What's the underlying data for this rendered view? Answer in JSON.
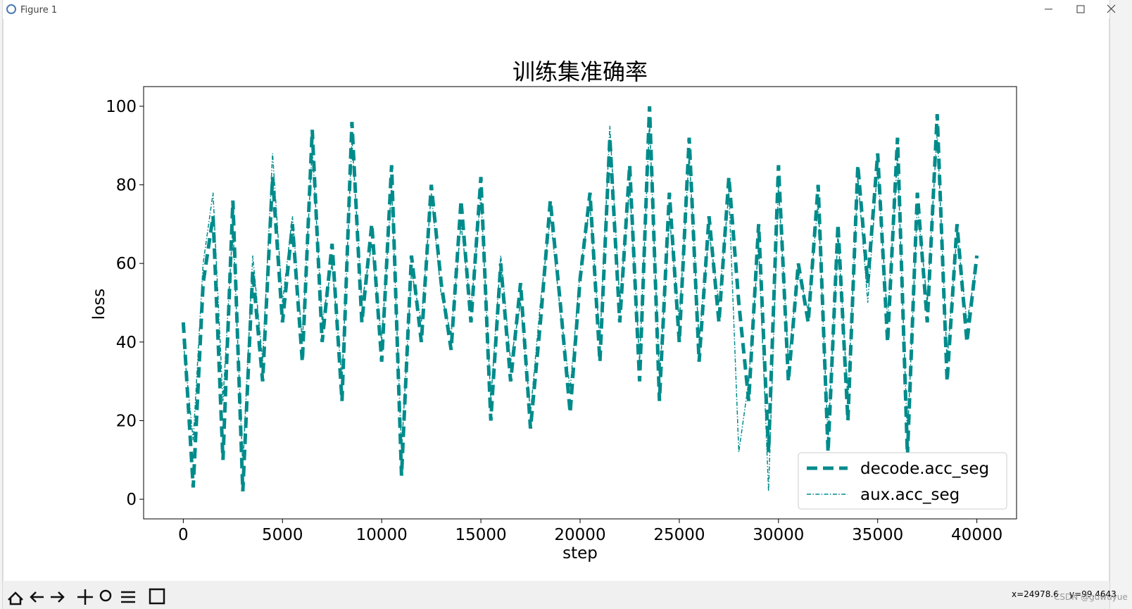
{
  "window": {
    "title": "Figure 1",
    "status": "x=24978.6    y=99.4643",
    "watermark": "CSDN @guwuyue"
  },
  "chart_data": {
    "type": "line",
    "title": "训练集准确率",
    "xlabel": "step",
    "ylabel": "loss",
    "x": [
      0,
      500,
      1000,
      1500,
      2000,
      2500,
      3000,
      3500,
      4000,
      4500,
      5000,
      5500,
      6000,
      6500,
      7000,
      7500,
      8000,
      8500,
      9000,
      9500,
      10000,
      10500,
      11000,
      11500,
      12000,
      12500,
      13000,
      13500,
      14000,
      14500,
      15000,
      15500,
      16000,
      16500,
      17000,
      17500,
      18000,
      18500,
      19000,
      19500,
      20000,
      20500,
      21000,
      21500,
      22000,
      22500,
      23000,
      23500,
      24000,
      24500,
      25000,
      25500,
      26000,
      26500,
      27000,
      27500,
      28000,
      28500,
      29000,
      29500,
      30000,
      30500,
      31000,
      31500,
      32000,
      32500,
      33000,
      33500,
      34000,
      34500,
      35000,
      35500,
      36000,
      36500,
      37000,
      37500,
      38000,
      38500,
      39000,
      39500,
      40000
    ],
    "series": [
      {
        "name": "decode.acc_seg",
        "color": "#008b8b",
        "linestyle": "dashed",
        "linewidth": 5,
        "values": [
          45,
          3,
          55,
          72,
          10,
          76,
          2,
          58,
          30,
          82,
          45,
          70,
          35,
          94,
          40,
          65,
          25,
          96,
          45,
          70,
          35,
          85,
          6,
          62,
          40,
          80,
          55,
          38,
          76,
          45,
          82,
          20,
          60,
          30,
          55,
          18,
          45,
          76,
          50,
          22,
          56,
          78,
          35,
          92,
          45,
          85,
          30,
          100,
          25,
          78,
          40,
          92,
          35,
          72,
          45,
          82,
          50,
          25,
          70,
          12,
          85,
          30,
          60,
          45,
          80,
          12,
          70,
          20,
          85,
          55,
          88,
          40,
          92,
          11,
          78,
          45,
          98,
          30,
          70,
          40,
          62
        ]
      },
      {
        "name": "aux.acc_seg",
        "color": "#008b8b",
        "linestyle": "dashdot",
        "linewidth": 1.5,
        "values": [
          40,
          15,
          60,
          78,
          25,
          70,
          8,
          62,
          35,
          88,
          50,
          72,
          40,
          90,
          45,
          60,
          30,
          92,
          50,
          65,
          40,
          80,
          12,
          58,
          45,
          78,
          52,
          42,
          70,
          48,
          78,
          25,
          62,
          35,
          50,
          22,
          50,
          72,
          48,
          28,
          58,
          75,
          40,
          95,
          50,
          80,
          35,
          96,
          30,
          72,
          45,
          88,
          40,
          68,
          50,
          78,
          12,
          30,
          65,
          2,
          80,
          35,
          58,
          48,
          76,
          15,
          68,
          25,
          82,
          50,
          85,
          45,
          88,
          15,
          75,
          50,
          94,
          35,
          68,
          45,
          60
        ]
      }
    ],
    "xlim": [
      -2000,
      42000
    ],
    "ylim": [
      -5,
      105
    ],
    "xticks": [
      0,
      5000,
      10000,
      15000,
      20000,
      25000,
      30000,
      35000,
      40000
    ],
    "yticks": [
      0,
      20,
      40,
      60,
      80,
      100
    ],
    "legend": "lower right"
  }
}
